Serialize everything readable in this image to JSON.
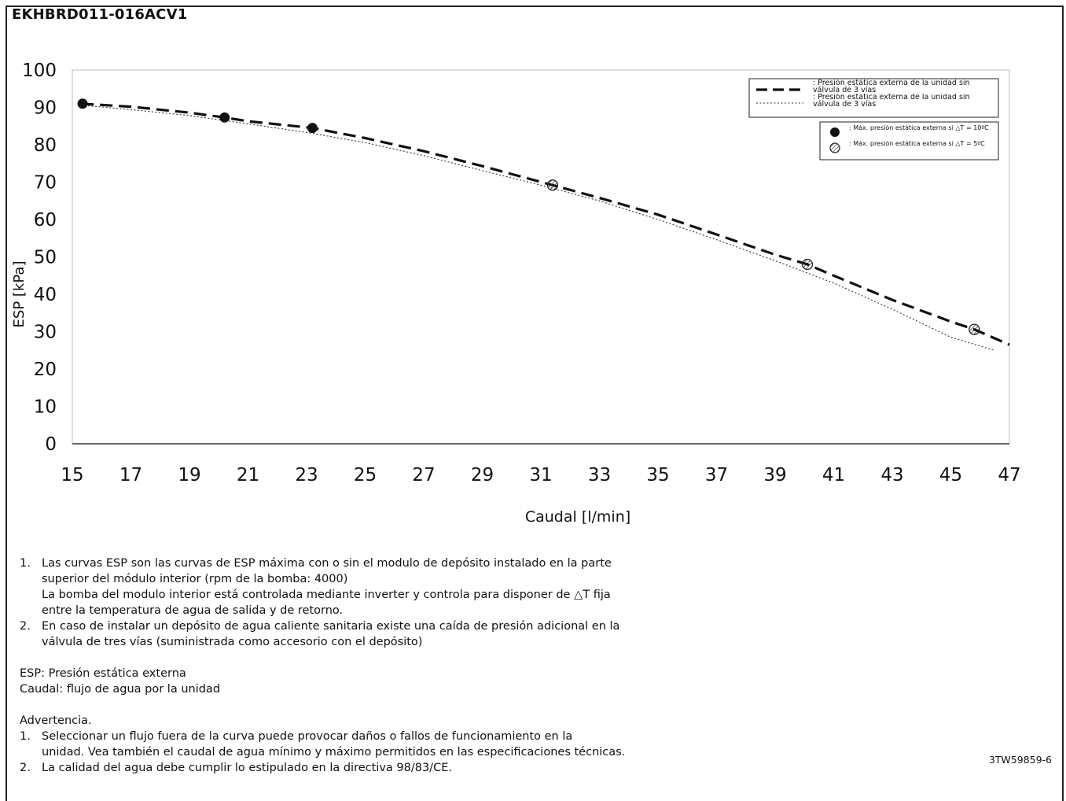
{
  "title": "EKHBRD011-016ACV1",
  "reference": "3TW59859-6",
  "chart_data": {
    "type": "line",
    "xlabel": "Caudal [l/min]",
    "ylabel": "ESP [kPa]",
    "xlim": [
      15,
      47
    ],
    "ylim": [
      0,
      100
    ],
    "x_ticks": [
      "15",
      "17",
      "19",
      "21",
      "23",
      "25",
      "27",
      "29",
      "31",
      "33",
      "35",
      "37",
      "39",
      "41",
      "43",
      "45",
      "47"
    ],
    "y_ticks": [
      "0",
      "10",
      "20",
      "30",
      "40",
      "50",
      "60",
      "70",
      "80",
      "90",
      "100"
    ],
    "grid": false,
    "legend_position": "top-right",
    "series": [
      {
        "name": "Presión estática externa de la unidad sin válvula de 3 vías",
        "style": "dashed-bold",
        "x": [
          15.3,
          17,
          19,
          20.2,
          21,
          23.2,
          25,
          27,
          29,
          31.5,
          33,
          35,
          37,
          39,
          40.1,
          41,
          43,
          45,
          45.8,
          47
        ],
        "y": [
          91,
          90.2,
          88.6,
          87.3,
          86.3,
          84.5,
          81.8,
          78.3,
          74.3,
          69,
          65.8,
          61.3,
          56,
          50.6,
          48,
          45,
          38.5,
          32.7,
          30.6,
          26.5
        ]
      },
      {
        "name": "Presión estática externa de la unidad sin válvula de 3 vías",
        "style": "dotted-thin",
        "x": [
          15.3,
          17,
          19,
          21,
          23,
          25,
          27,
          29,
          31,
          33,
          35,
          37,
          39,
          41,
          43,
          45,
          46.5
        ],
        "y": [
          90.6,
          89.4,
          87.8,
          85.6,
          83.3,
          80.6,
          77.1,
          73.1,
          69.2,
          65,
          60,
          54.6,
          49,
          43,
          36,
          28.5,
          25
        ]
      }
    ],
    "markers": [
      {
        "name": "Máx. presión estática externa si △T = 10ºC",
        "style": "filled-circle",
        "points": [
          [
            15.35,
            91
          ],
          [
            20.2,
            87.3
          ],
          [
            23.2,
            84.5
          ]
        ]
      },
      {
        "name": "Máx. presión estática externa si △T = 5ºC",
        "style": "hatched-circle",
        "points": [
          [
            31.4,
            69.2
          ],
          [
            40.1,
            48
          ],
          [
            45.8,
            30.6
          ]
        ]
      }
    ],
    "legend": {
      "lines": [
        "Presión estática externa de la unidad sin válvula de 3 vías",
        "Presión estática externa de la unidad sin válvula de 3 vías"
      ],
      "markers": [
        "Máx. presión estática externa si △T = 10ºC",
        "Máx. presión estática externa si △T = 5ºC"
      ]
    }
  },
  "notes": {
    "items": [
      {
        "num": "1.",
        "lines": [
          "Las curvas ESP son las curvas de ESP máxima con o sin el modulo de depósito instalado en la parte",
          "superior del módulo interior (rpm de la bomba: 4000)",
          "La bomba del modulo interior está controlada mediante inverter y controla para disponer de △T fija",
          "entre la temperatura de agua de salida y de retorno."
        ]
      },
      {
        "num": "2.",
        "lines": [
          "En caso de instalar un depósito de agua caliente sanitaria existe una caída de presión adicional en la",
          "válvula de tres vías (suministrada como accesorio con el depósito)"
        ]
      }
    ],
    "definitions": [
      "ESP: Presión estática externa",
      "Caudal: flujo de agua por la unidad"
    ],
    "warning_title": "Advertencia.",
    "warnings": [
      {
        "num": "1.",
        "lines": [
          "Seleccionar un flujo fuera de la curva puede provocar daños o fallos de funcionamiento en la",
          "unidad.  Vea también el caudal de agua mínimo y máximo permitidos en las especificaciones técnicas."
        ]
      },
      {
        "num": "2.",
        "lines": [
          "La calidad del agua debe cumplir lo estipulado en la directiva 98/83/CE."
        ]
      }
    ]
  }
}
